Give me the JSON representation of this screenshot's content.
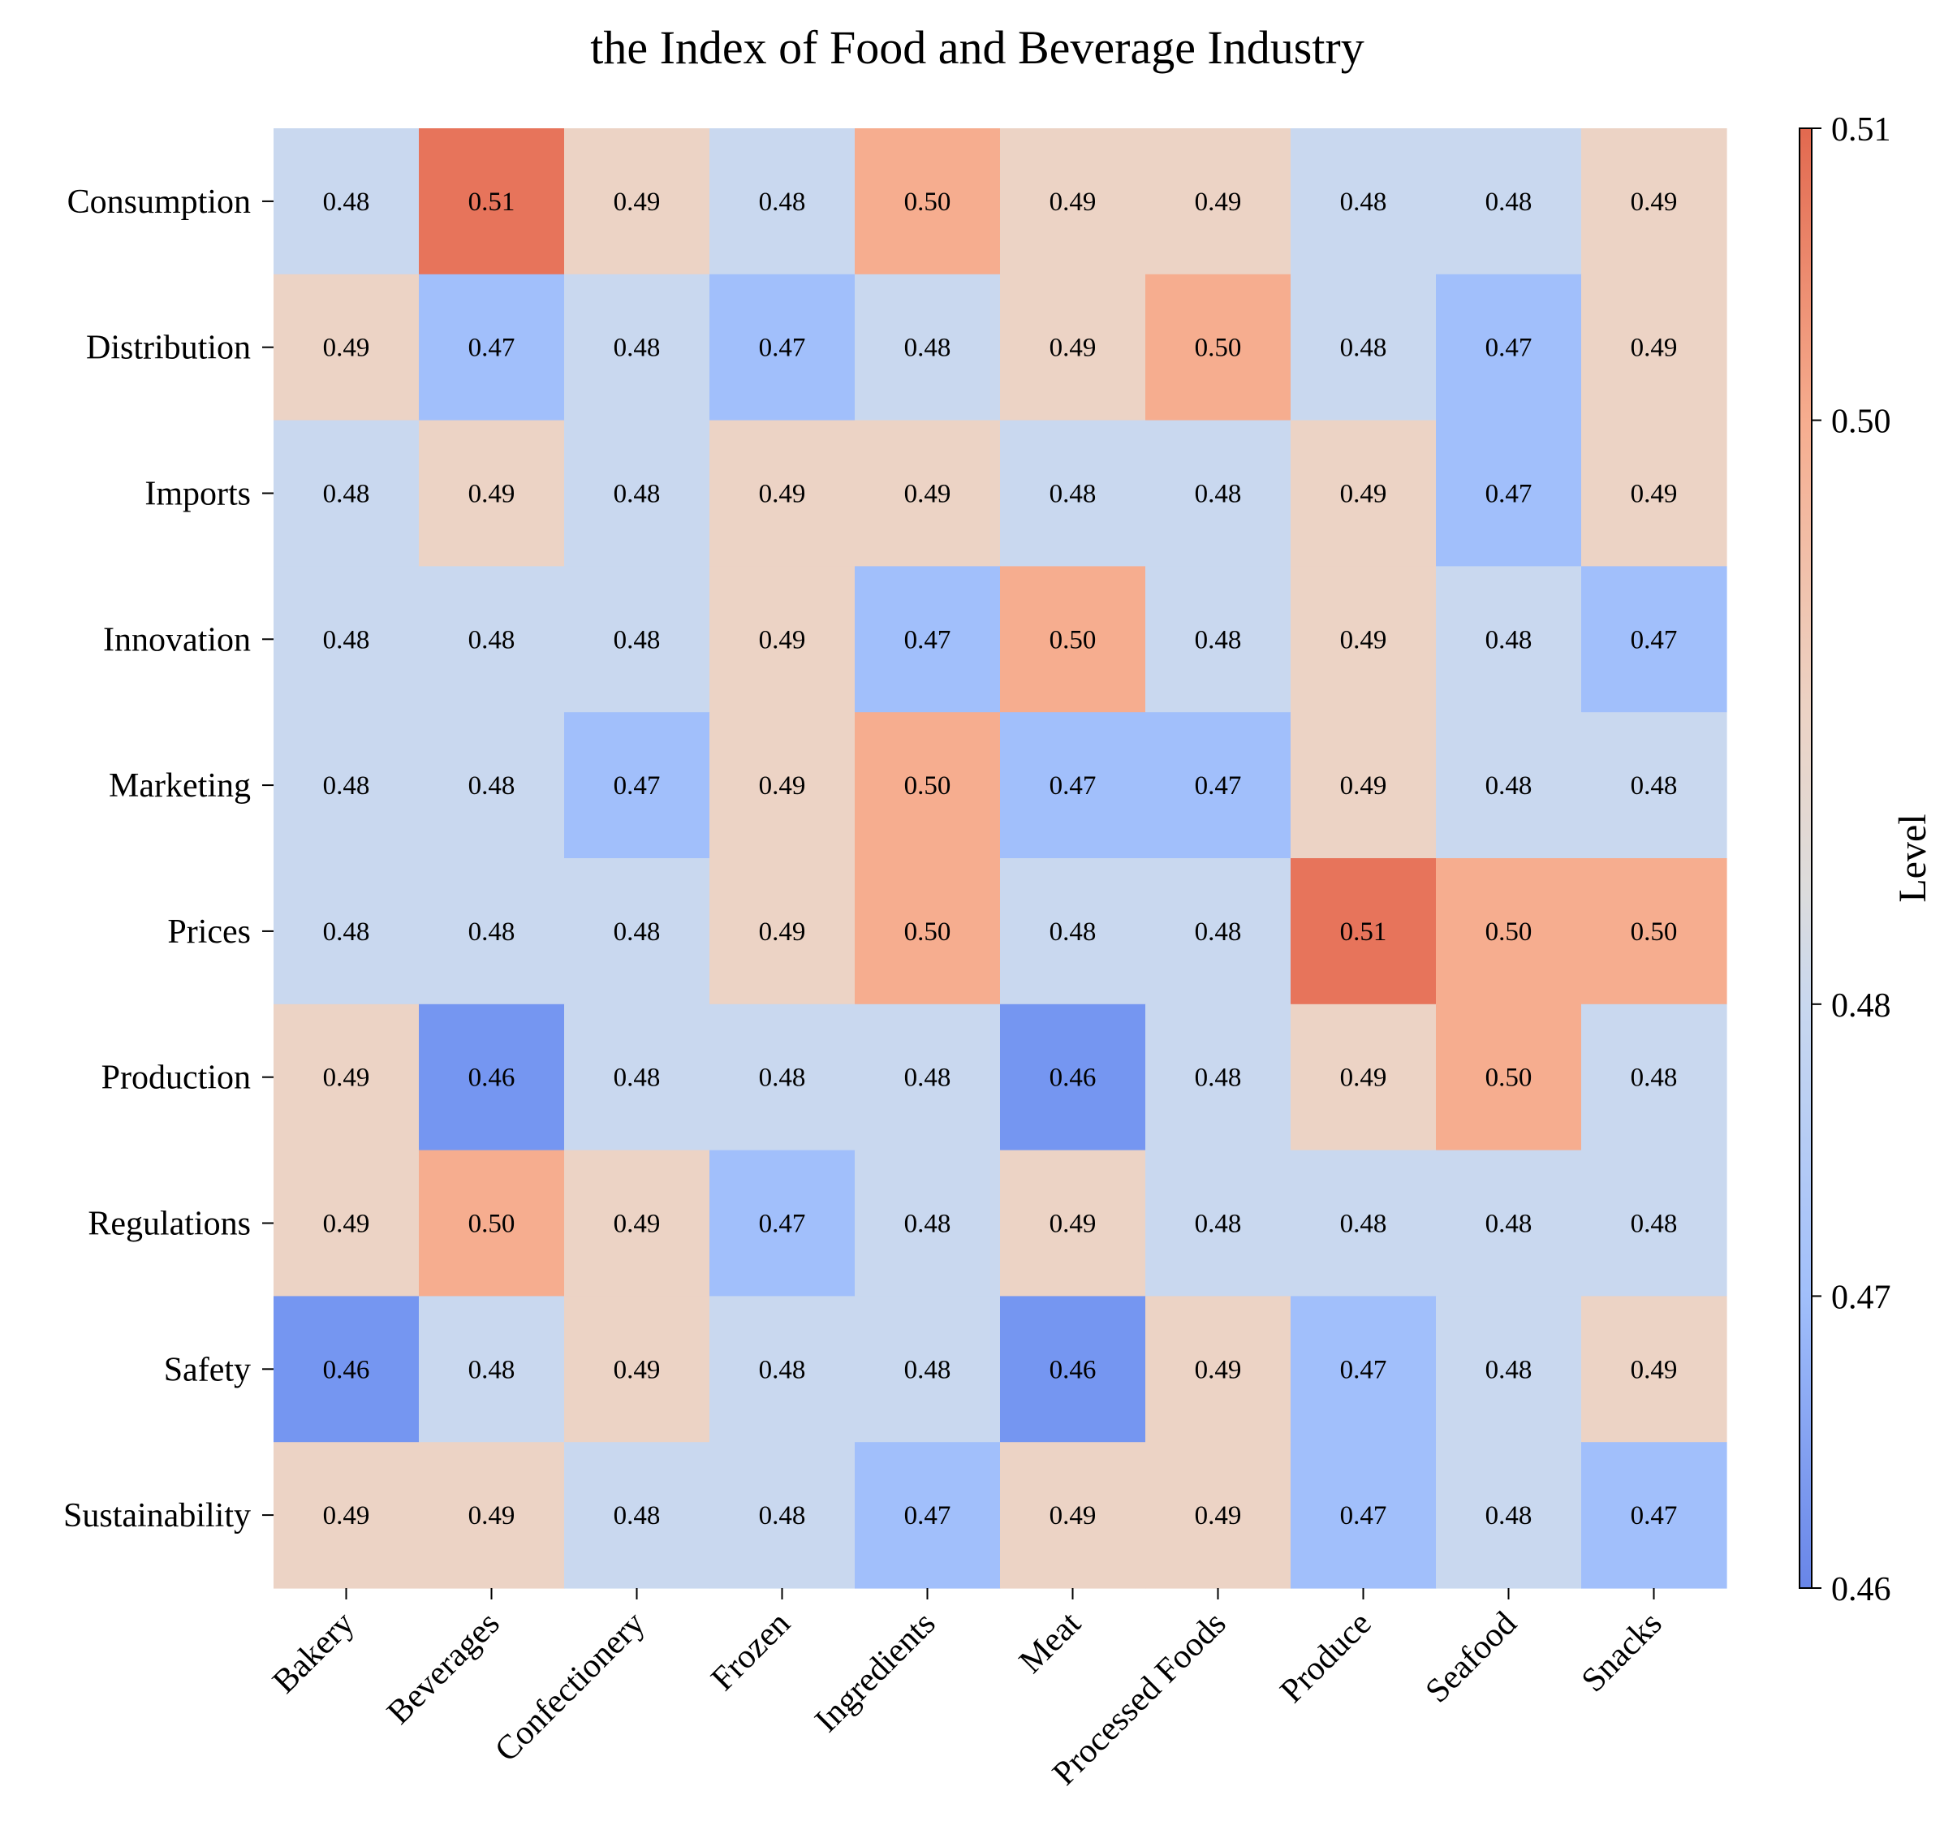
{
  "chart_data": {
    "type": "heatmap",
    "title": "the Index of Food and Beverage Industry",
    "x_categories": [
      "Bakery",
      "Beverages",
      "Confectionery",
      "Frozen",
      "Ingredients",
      "Meat",
      "Processed Foods",
      "Produce",
      "Seafood",
      "Snacks"
    ],
    "y_categories": [
      "Consumption",
      "Distribution",
      "Imports",
      "Innovation",
      "Marketing",
      "Prices",
      "Production",
      "Regulations",
      "Safety",
      "Sustainability"
    ],
    "values": [
      [
        0.48,
        0.51,
        0.49,
        0.48,
        0.5,
        0.49,
        0.49,
        0.48,
        0.48,
        0.49
      ],
      [
        0.49,
        0.47,
        0.48,
        0.47,
        0.48,
        0.49,
        0.5,
        0.48,
        0.47,
        0.49
      ],
      [
        0.48,
        0.49,
        0.48,
        0.49,
        0.49,
        0.48,
        0.48,
        0.49,
        0.47,
        0.49
      ],
      [
        0.48,
        0.48,
        0.48,
        0.49,
        0.47,
        0.5,
        0.48,
        0.49,
        0.48,
        0.47
      ],
      [
        0.48,
        0.48,
        0.47,
        0.49,
        0.5,
        0.47,
        0.47,
        0.49,
        0.48,
        0.48
      ],
      [
        0.48,
        0.48,
        0.48,
        0.49,
        0.5,
        0.48,
        0.48,
        0.51,
        0.5,
        0.5
      ],
      [
        0.49,
        0.46,
        0.48,
        0.48,
        0.48,
        0.46,
        0.48,
        0.49,
        0.5,
        0.48
      ],
      [
        0.49,
        0.5,
        0.49,
        0.47,
        0.48,
        0.49,
        0.48,
        0.48,
        0.48,
        0.48
      ],
      [
        0.46,
        0.48,
        0.49,
        0.48,
        0.48,
        0.46,
        0.49,
        0.47,
        0.48,
        0.49
      ],
      [
        0.49,
        0.49,
        0.48,
        0.48,
        0.47,
        0.49,
        0.49,
        0.47,
        0.48,
        0.47
      ]
    ],
    "value_format": "0.00",
    "colorbar": {
      "label": "Level",
      "range": [
        0.46,
        0.51
      ],
      "ticks": [
        "0.46",
        "0.47",
        "0.48",
        "0.50",
        "0.51"
      ],
      "colormap": "coolwarm"
    },
    "level_colors": {
      "0.46": "#7596f1",
      "0.47": "#a1bffb",
      "0.48": "#c9d8ef",
      "0.49": "#ecd3c5",
      "0.50": "#f6ad8f",
      "0.51": "#e7745b"
    },
    "grid": false
  }
}
